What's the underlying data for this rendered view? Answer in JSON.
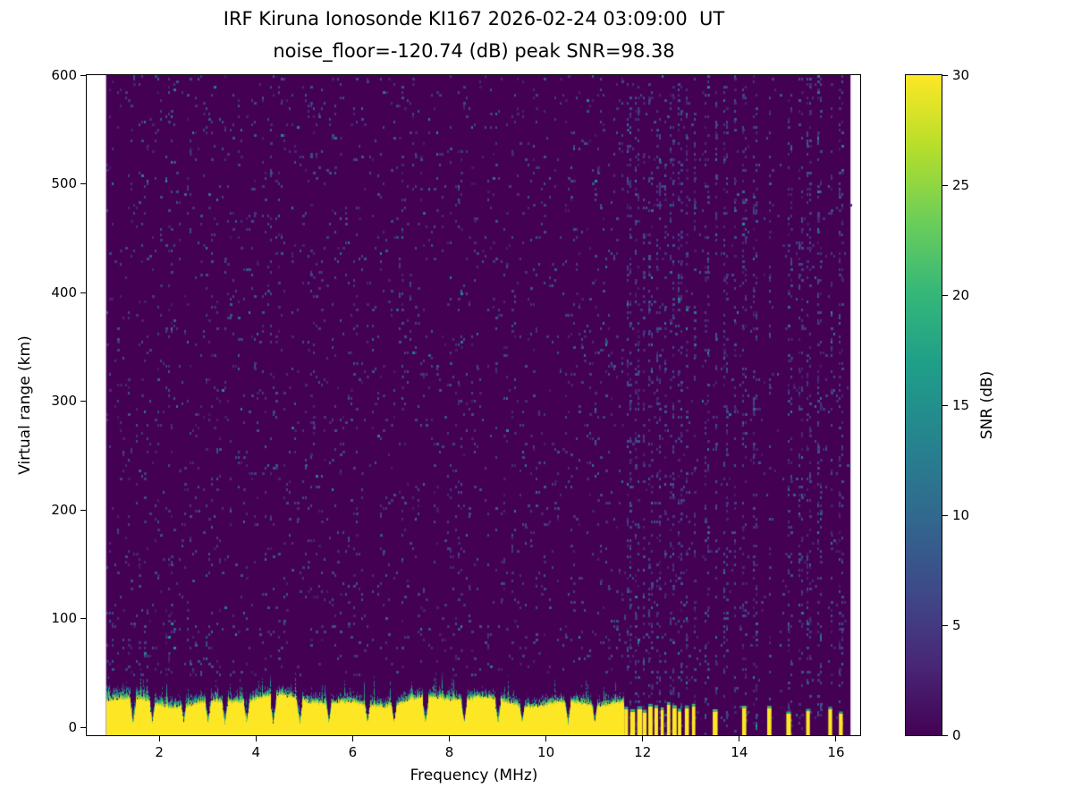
{
  "chart_data": {
    "type": "heatmap",
    "title": "IRF Kiruna Ionosonde KI167 2026-02-24 03:09:00  UT",
    "subtitle": "noise_floor=-120.74 (dB) peak SNR=98.38",
    "station": "IRF Kiruna Ionosonde KI167",
    "timestamp_ut": "2026-02-24 03:09:00",
    "noise_floor_db": -120.74,
    "peak_snr_db": 98.38,
    "xlabel": "Frequency (MHz)",
    "ylabel": "Virtual range (km)",
    "xlim": [
      0.5,
      16.5
    ],
    "ylim": [
      -7,
      600
    ],
    "xticks": [
      2,
      4,
      6,
      8,
      10,
      12,
      14,
      16
    ],
    "yticks": [
      0,
      100,
      200,
      300,
      400,
      500,
      600
    ],
    "colormap": "viridis",
    "background_snr_db": 0,
    "colorbar": {
      "label": "SNR (dB)",
      "range": [
        0,
        30
      ],
      "ticks": [
        0,
        5,
        10,
        15,
        20,
        25,
        30
      ]
    },
    "data_extent_mhz": [
      0.9,
      16.3
    ],
    "ground_echo_band": {
      "freq_start_mhz": 0.9,
      "continuous_until_mhz": 11.6,
      "yellow_top_km_mean": 25,
      "fuzz_top_km_max": 50,
      "extends_below_km": -7
    },
    "band_notch_freqs_mhz": [
      1.45,
      1.85,
      2.5,
      3.0,
      3.35,
      3.8,
      4.35,
      4.9,
      5.5,
      6.3,
      6.85,
      7.5,
      8.3,
      9.0,
      9.5,
      10.45,
      11.0
    ],
    "barcode_segment_mhz": [
      11.62,
      13.1
    ],
    "isolated_echo_columns_mhz": [
      13.5,
      14.1,
      14.62,
      15.02,
      15.42,
      15.88,
      16.1
    ],
    "rfi_stripe_freqs_mhz": [
      11.7,
      11.85,
      12.0,
      12.15,
      12.3,
      12.45,
      12.6,
      12.75,
      12.9,
      13.05,
      13.3,
      13.5,
      13.7,
      13.9,
      14.1,
      14.3,
      14.62,
      15.02,
      15.25,
      15.42,
      15.65,
      15.88,
      16.1
    ],
    "faint_noise_stripes_mhz": [
      1.35,
      2.2,
      3.05,
      4.3,
      5.15,
      6.05,
      7.0,
      8.2,
      9.3,
      10.55
    ]
  }
}
